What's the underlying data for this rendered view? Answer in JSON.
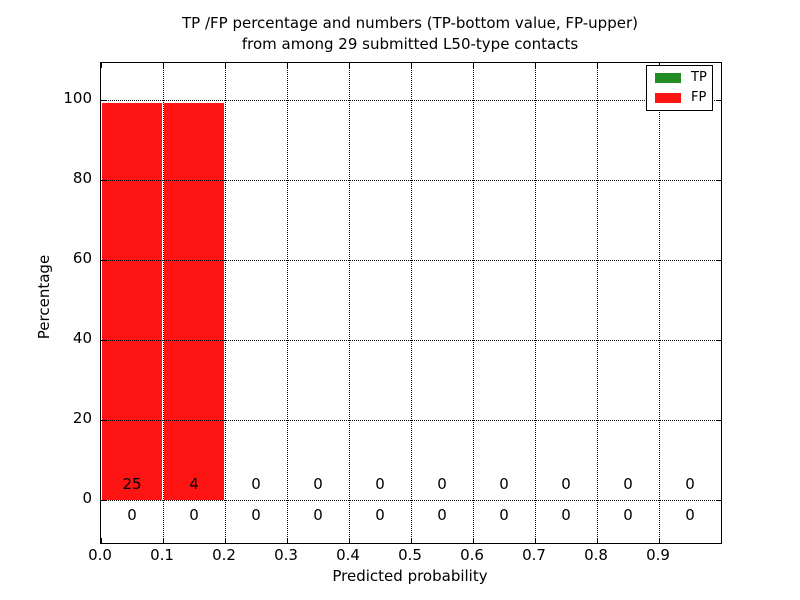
{
  "chart_data": {
    "type": "bar",
    "stacked": true,
    "title": "TP /FP percentage and numbers (TP-bottom value, FP-upper)\nfrom among 29 submitted L50-type contacts",
    "title_lines": [
      "TP /FP percentage and numbers (TP-bottom value, FP-upper)",
      "from among 29 submitted L50-type contacts"
    ],
    "xlabel": "Predicted probability",
    "ylabel": "Percentage",
    "total_submitted_contacts": 29,
    "contact_type": "L50",
    "categories": [
      "0.0",
      "0.1",
      "0.2",
      "0.3",
      "0.4",
      "0.5",
      "0.6",
      "0.7",
      "0.8",
      "0.9"
    ],
    "bin_width": 0.1,
    "series": [
      {
        "name": "TP",
        "color": "#228b22",
        "percentages": [
          0,
          0,
          0,
          0,
          0,
          0,
          0,
          0,
          0,
          0
        ],
        "counts": [
          0,
          0,
          0,
          0,
          0,
          0,
          0,
          0,
          0,
          0
        ]
      },
      {
        "name": "FP",
        "color": "#ff1414",
        "percentages": [
          100,
          100,
          0,
          0,
          0,
          0,
          0,
          0,
          0,
          0
        ],
        "counts": [
          25,
          4,
          0,
          0,
          0,
          0,
          0,
          0,
          0,
          0
        ]
      }
    ],
    "annotation_note": "FP counts shown just above the 0% baseline, TP counts shown just below it",
    "yticks": [
      0,
      20,
      40,
      60,
      80,
      100
    ],
    "ytick_labels": [
      "0",
      "20",
      "40",
      "60",
      "80",
      "100"
    ],
    "xlim": [
      0.0,
      1.0
    ],
    "ylim": [
      -11,
      108
    ],
    "grid": "dotted black, drawn above bars",
    "legend_position": "upper right",
    "legend_entries": [
      {
        "label": "TP",
        "color": "#228b22"
      },
      {
        "label": "FP",
        "color": "#ff1414"
      }
    ]
  }
}
